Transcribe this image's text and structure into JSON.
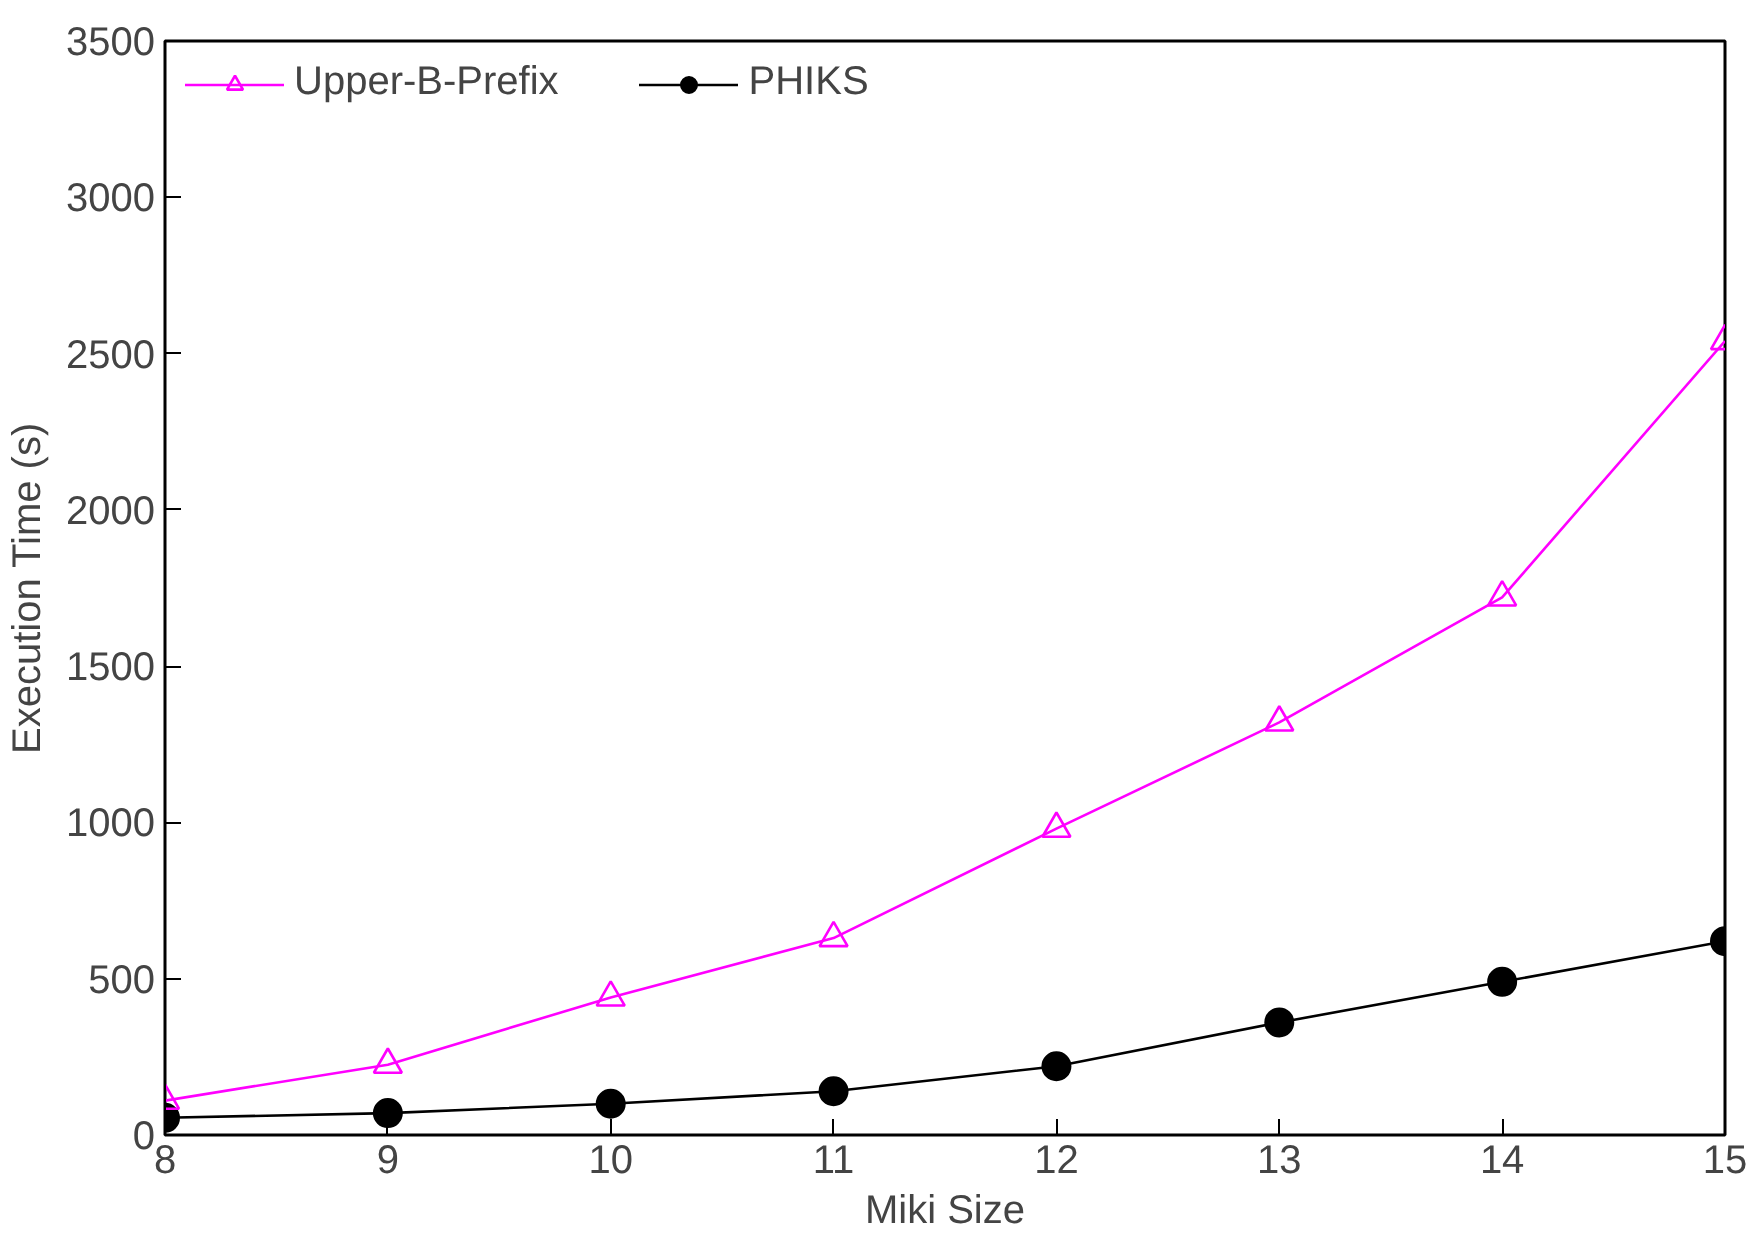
{
  "chart_data": {
    "type": "line",
    "xlabel": "Miki Size",
    "ylabel": "Execution Time (s)",
    "x": [
      8,
      9,
      10,
      11,
      12,
      13,
      14,
      15
    ],
    "xlim": [
      8,
      15
    ],
    "xticks": [
      8,
      9,
      10,
      11,
      12,
      13,
      14,
      15
    ],
    "ylim": [
      0,
      3500
    ],
    "yticks": [
      0,
      500,
      1000,
      1500,
      2000,
      2500,
      3000,
      3500
    ],
    "grid": false,
    "legend": "top left",
    "line_style": "solid",
    "series": [
      {
        "name": "Upper-B-Prefix",
        "color": "#ff00ff",
        "marker": "triangle",
        "values": [
          110,
          225,
          440,
          630,
          980,
          1320,
          1720,
          2540
        ]
      },
      {
        "name": "PHIKS",
        "color": "#000000",
        "marker": "circle",
        "values": [
          55,
          70,
          100,
          140,
          220,
          360,
          490,
          620
        ]
      }
    ]
  }
}
